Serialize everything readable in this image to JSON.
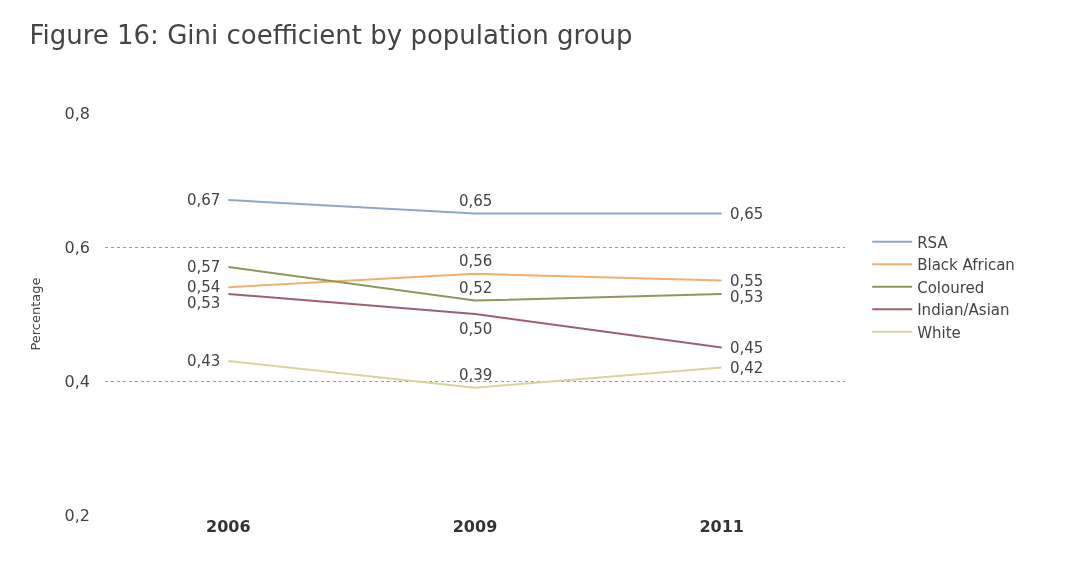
{
  "chart_data": {
    "type": "line",
    "title": "Figure 16: Gini coefficient by population group",
    "ylabel": "Percentage",
    "categories": [
      "2006",
      "2009",
      "2011"
    ],
    "ylim": [
      0.2,
      0.8
    ],
    "yticks": [
      {
        "value": 0.2,
        "label": "0,2"
      },
      {
        "value": 0.4,
        "label": "0,4"
      },
      {
        "value": 0.6,
        "label": "0,6"
      },
      {
        "value": 0.8,
        "label": "0,8"
      }
    ],
    "grid": "y",
    "legend": "right",
    "marker": "none",
    "line_style": "solid",
    "series": [
      {
        "name": "RSA",
        "color": "#8fa8c8",
        "values": [
          0.67,
          0.65,
          0.65
        ],
        "value_labels": [
          "0,67",
          "0,65",
          "0,65"
        ]
      },
      {
        "name": "Black African",
        "color": "#f0b070",
        "values": [
          0.54,
          0.56,
          0.55
        ],
        "value_labels": [
          "0,54",
          "0,56",
          "0,55"
        ]
      },
      {
        "name": "Coloured",
        "color": "#8a9a5b",
        "values": [
          0.57,
          0.52,
          0.53
        ],
        "value_labels": [
          "0,57",
          "0,52",
          "0,53"
        ]
      },
      {
        "name": "Indian/Asian",
        "color": "#a0606a",
        "values": [
          0.53,
          0.5,
          0.45
        ],
        "value_labels": [
          "0,53",
          "0,50",
          "0,45"
        ]
      },
      {
        "name": "White",
        "color": "#d8d49a",
        "values": [
          0.43,
          0.39,
          0.42
        ],
        "value_labels": [
          "0,43",
          "0,39",
          "0,42"
        ]
      }
    ]
  }
}
